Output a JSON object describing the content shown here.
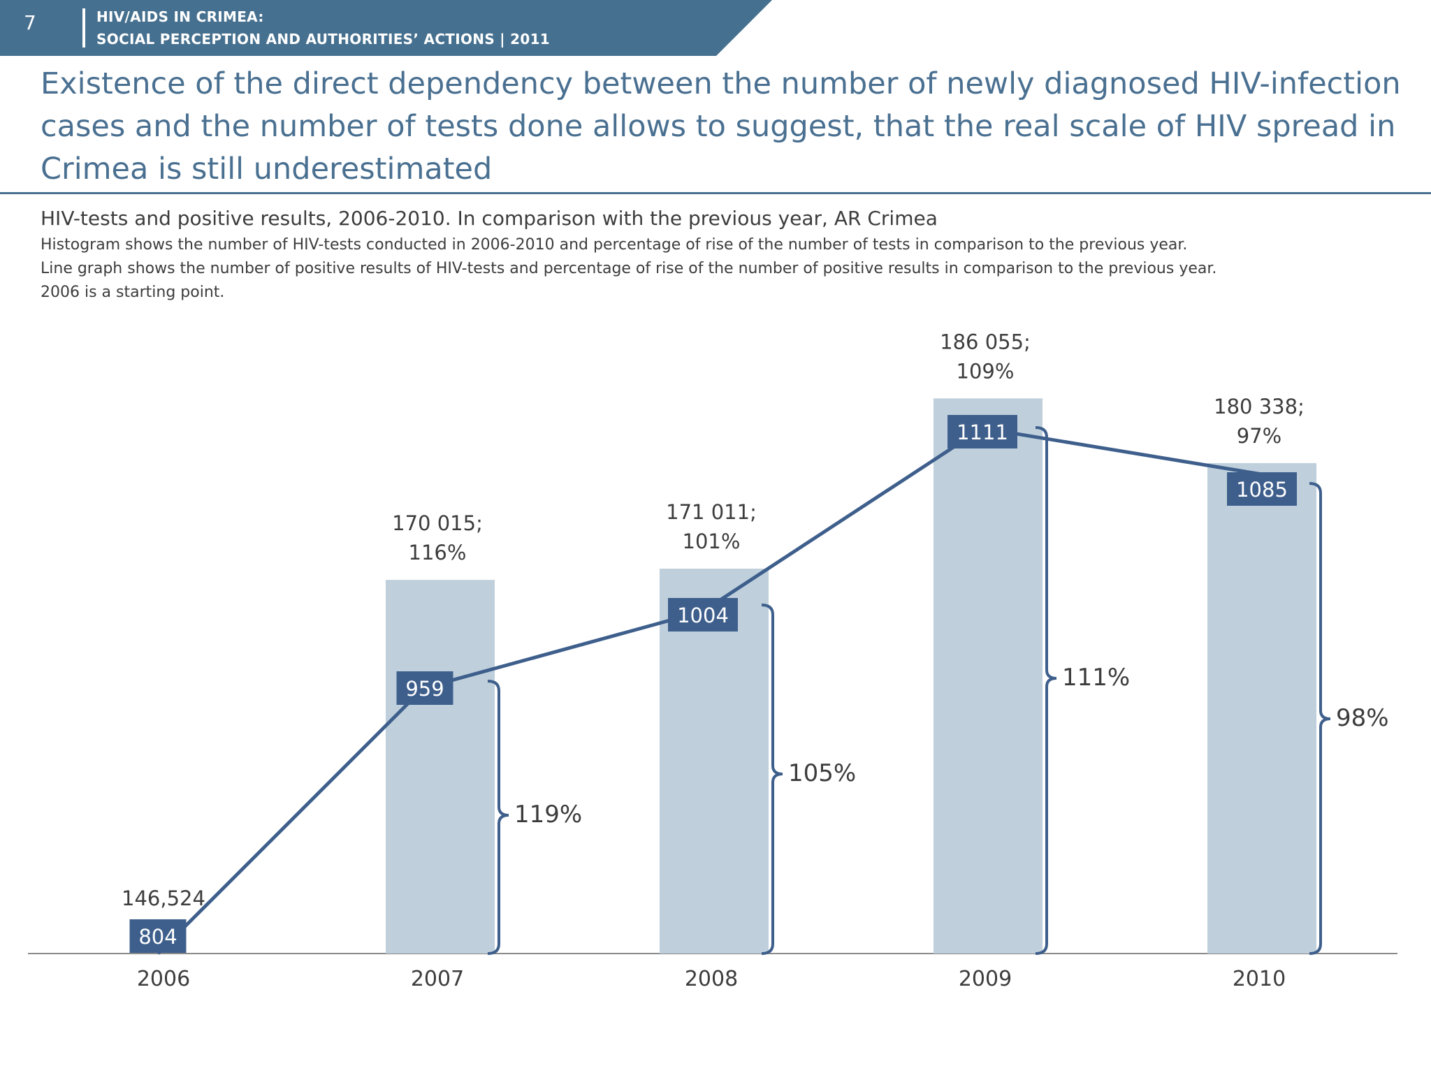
{
  "header": {
    "slide_number": "7",
    "line1": "HIV/AIDS IN CRIMEA:",
    "line2": "SOCIAL PERCEPTION AND AUTHORITIES’ ACTIONS  |  2011"
  },
  "title": "Existence of the direct dependency between the number of newly diagnosed HIV-infection cases and the number of tests done allows to suggest, that the real scale of HIV spread in Crimea is still underestimated",
  "chart_heading": "HIV-tests and positive results, 2006-2010. In comparison with the previous year, AR Crimea",
  "notes": [
    "Histogram shows the number of HIV-tests conducted in 2006-2010 and percentage of rise of the number of tests in comparison to the previous year.",
    "Line graph shows the number of positive results of HIV-tests  and percentage of rise of the number of  positive results in comparison to the previous year.",
    "2006 is a starting point."
  ],
  "colors": {
    "header_band": "#46708f",
    "bar": "#bfd0dc",
    "line": "#3e5f8c",
    "label_box": "#3e5f8c",
    "title": "#4a7091"
  },
  "chart_data": {
    "type": "bar",
    "categories": [
      "2006",
      "2007",
      "2008",
      "2009",
      "2010"
    ],
    "series": [
      {
        "type": "bar",
        "values": [
          146524,
          170015,
          171011,
          186055,
          180338
        ],
        "labels": [
          "146,524",
          "170 015;\n116%",
          "171 011;\n101%",
          "186 055;\n109%",
          "180 338;\n97%"
        ]
      },
      {
        "type": "line",
        "values": [
          804,
          959,
          1004,
          1111,
          1085
        ],
        "labels": [
          "804",
          "959",
          "1004",
          "1111",
          "1085"
        ]
      }
    ],
    "brackets": [
      {
        "category": "2007",
        "label": "119%"
      },
      {
        "category": "2008",
        "label": "105%"
      },
      {
        "category": "2009",
        "label": "111%"
      },
      {
        "category": "2010",
        "label": "98%"
      }
    ],
    "legend": "none",
    "grid": false
  }
}
